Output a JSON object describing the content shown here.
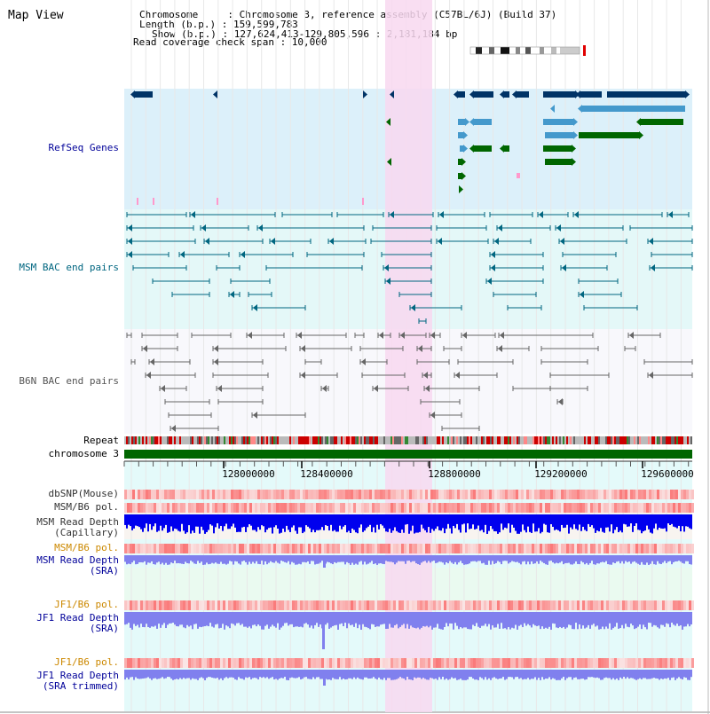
{
  "map": {
    "title": "Map View",
    "info": [
      "Chromosome     : Chromosome 3, reference assembly (C57BL/6J) (Build 37)",
      "Length (b.p.) : 159,599,783",
      "Show (b.p.) : 127,624,413-129,805,596 : 2,181,184 bp",
      "Read coverage check span : 10,000"
    ]
  },
  "tracks": {
    "refseq": "RefSeq Genes",
    "msm_bac": "MSM BAC end pairs",
    "b6n_bac": "B6N BAC end pairs",
    "repeat": "Repeat",
    "chromosome": "chromosome 3",
    "dbsnp": "dbSNP(Mouse)",
    "msm_b6_pol": "MSM/B6 pol.",
    "msm_depth_cap": [
      "MSM Read Depth",
      "(Capillary)"
    ],
    "msm_b6_pol2": "MSM/B6 pol.",
    "msm_depth_sra": [
      "MSM Read Depth",
      "(SRA)"
    ],
    "jf1_b6_pol": "JF1/B6 pol.",
    "jf1_depth_sra": [
      "JF1 Read Depth",
      "(SRA)"
    ],
    "jf1_b6_pol2": "JF1/B6 pol.",
    "jf1_depth_trim": [
      "JF1 Read Depth",
      "(SRA trimmed)"
    ]
  },
  "ruler": {
    "ticks": [
      "128000000",
      "128400000",
      "128800000",
      "129200000",
      "129600000"
    ]
  },
  "colors": {
    "refseq_dark": "#003366",
    "refseq_light": "#4499cc",
    "refseq_green": "#006600",
    "msm_bac": "#006680",
    "b6n_bac": "#666666",
    "chromosome": "#006600",
    "highlight": "#f8d8f0",
    "label_blue": "#000099",
    "label_orange": "#cc8800"
  }
}
